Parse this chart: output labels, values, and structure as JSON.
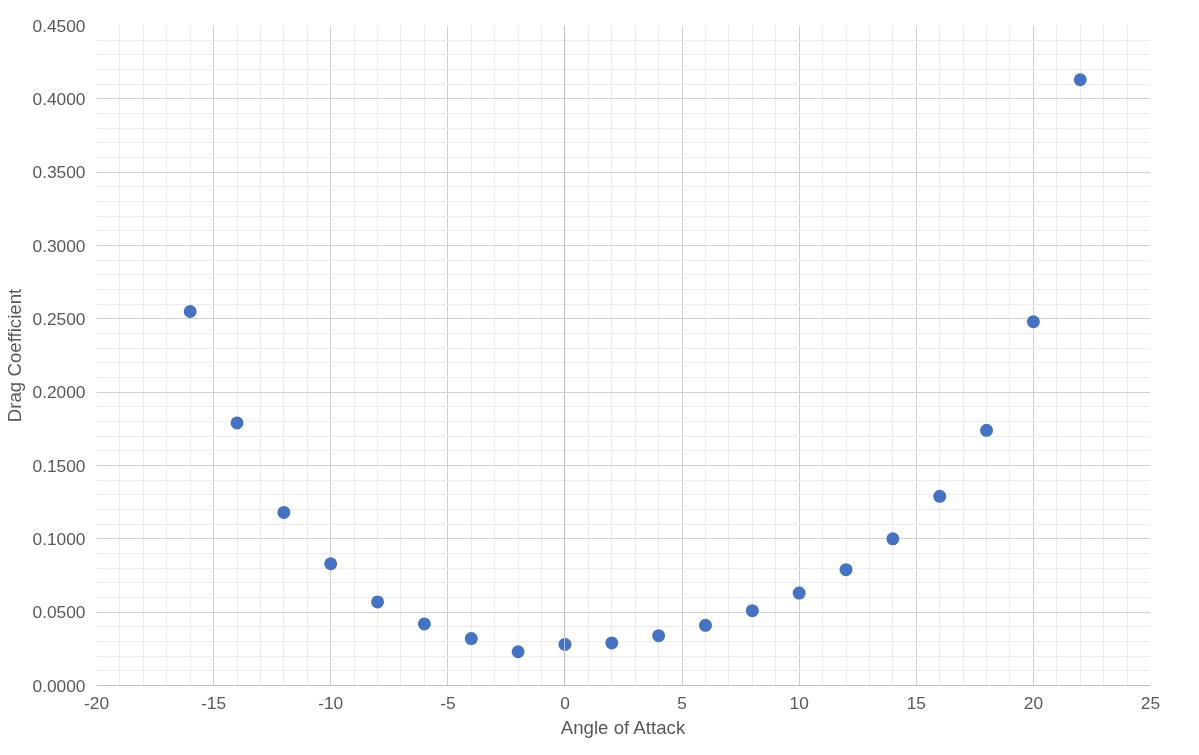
{
  "chart_data": {
    "type": "scatter",
    "xlabel": "Angle of Attack",
    "ylabel": "Drag Coefficient",
    "x": [
      -16,
      -14,
      -12,
      -10,
      -8,
      -6,
      -4,
      -2,
      0,
      2,
      4,
      6,
      8,
      10,
      12,
      14,
      16,
      18,
      20,
      22
    ],
    "series": [
      {
        "color": "#4472c4",
        "values": [
          0.255,
          0.179,
          0.118,
          0.083,
          0.057,
          0.042,
          0.032,
          0.023,
          0.028,
          0.029,
          0.034,
          0.041,
          0.051,
          0.063,
          0.079,
          0.1,
          0.129,
          0.174,
          0.248,
          0.413
        ]
      }
    ],
    "xlim": [
      -20,
      25
    ],
    "ylim": [
      0,
      0.45
    ],
    "xticks": [
      -20,
      -15,
      -10,
      -5,
      0,
      5,
      10,
      15,
      20,
      25
    ],
    "yticks": [
      {
        "value": 0,
        "label": "0.0000"
      },
      {
        "value": 0.05,
        "label": "0.0500"
      },
      {
        "value": 0.1,
        "label": "0.1000"
      },
      {
        "value": 0.15,
        "label": "0.1500"
      },
      {
        "value": 0.2,
        "label": "0.2000"
      },
      {
        "value": 0.25,
        "label": "0.2500"
      },
      {
        "value": 0.3,
        "label": "0.3000"
      },
      {
        "value": 0.35,
        "label": "0.3500"
      },
      {
        "value": 0.4,
        "label": "0.4000"
      },
      {
        "value": 0.45,
        "label": "0.4500"
      }
    ],
    "grid": true,
    "marker": "circle"
  }
}
